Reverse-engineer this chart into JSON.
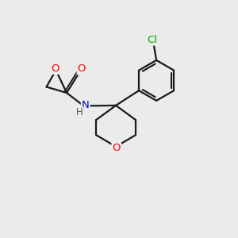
{
  "background_color": "#ebebeb",
  "bond_color": "#1a1a1a",
  "atom_colors": {
    "O": "#ff0000",
    "N": "#0000cc",
    "Cl": "#00aa00",
    "C": "#1a1a1a",
    "H": "#555555"
  },
  "figsize": [
    3.0,
    3.0
  ],
  "dpi": 100,
  "lw": 1.6,
  "fontsize": 9.5
}
